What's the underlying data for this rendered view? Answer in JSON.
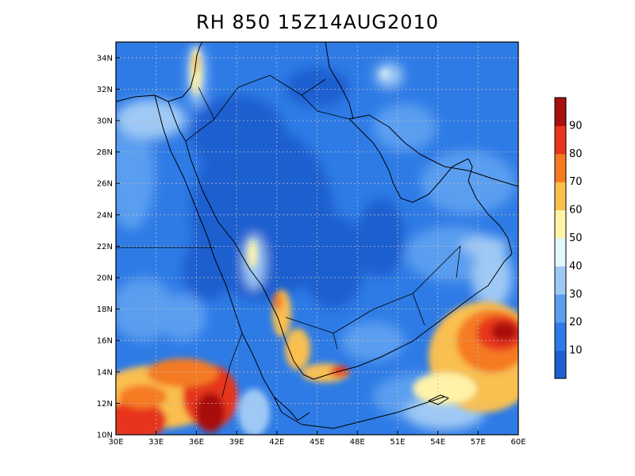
{
  "title": "RH 850 15Z14AUG2010",
  "map": {
    "lon_range": [
      30,
      60
    ],
    "lat_range": [
      10,
      35
    ],
    "lon_ticks": [
      "30E",
      "33E",
      "36E",
      "39E",
      "42E",
      "45E",
      "48E",
      "51E",
      "54E",
      "57E",
      "60E"
    ],
    "lat_ticks": [
      "10N",
      "12N",
      "14N",
      "16N",
      "18N",
      "20N",
      "22N",
      "24N",
      "26N",
      "28N",
      "30N",
      "32N",
      "34N"
    ],
    "grid": "dotted"
  },
  "colorbar": {
    "labels": [
      "10",
      "20",
      "30",
      "40",
      "50",
      "60",
      "70",
      "80",
      "90"
    ],
    "colors": [
      "#1f5fcf",
      "#2e7be6",
      "#5a9ef0",
      "#9fc9f5",
      "#e2f6fb",
      "#fff3a8",
      "#f9bf4f",
      "#f57a22",
      "#e6351c",
      "#a80f0f"
    ]
  }
}
